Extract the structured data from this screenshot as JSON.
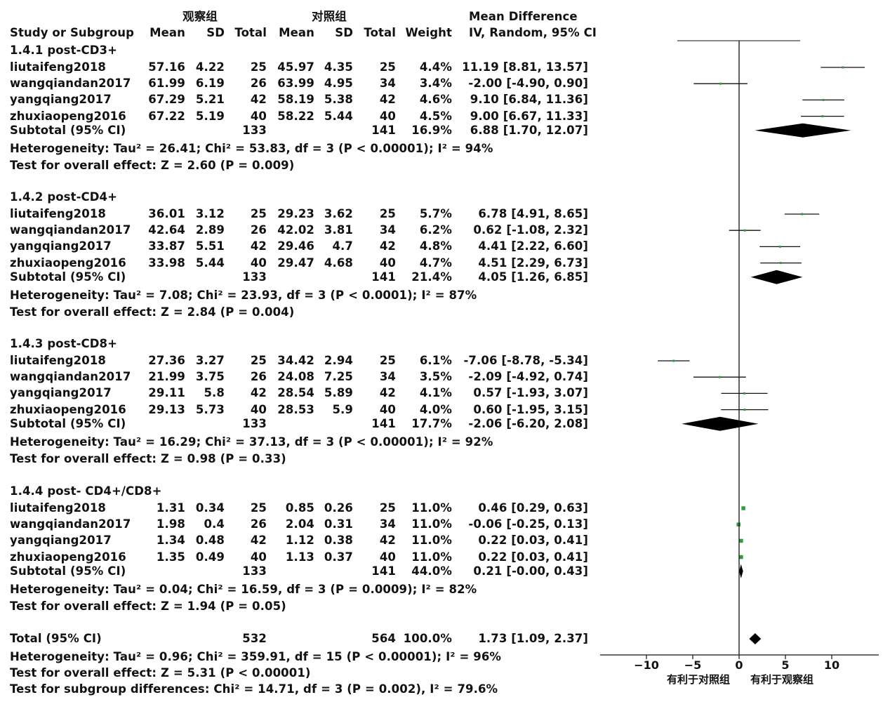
{
  "header": {
    "group1": "观察组",
    "group2": "对照组",
    "effect_title": "Mean Difference",
    "study_col": "Study or Subgroup",
    "mean1": "Mean",
    "sd1": "SD",
    "total1": "Total",
    "mean2": "Mean",
    "sd2": "SD",
    "total2": "Total",
    "weight": "Weight",
    "effect_method": "IV, Random, 95% CI"
  },
  "chart_data": {
    "type": "forest",
    "xlim": [
      -15,
      15
    ],
    "xticks": [
      -10,
      -5,
      0,
      5,
      10
    ],
    "xtick_labels": [
      "−10",
      "−5",
      "0",
      "5",
      "10"
    ],
    "xlabel_left": "有利于对照组",
    "xlabel_right": "有利于观察组",
    "subgroups": [
      {
        "title": "1.4.1 post-CD3+",
        "studies": [
          {
            "name": "liutaifeng2018",
            "mean1": "57.16",
            "sd1": "4.22",
            "n1": "25",
            "mean2": "45.97",
            "sd2": "4.35",
            "n2": "25",
            "weight": "4.4%",
            "ci_text": "11.19 [8.81, 13.57]",
            "md": 11.19,
            "lo": 8.81,
            "hi": 13.57
          },
          {
            "name": "wangqiandan2017",
            "mean1": "61.99",
            "sd1": "6.19",
            "n1": "26",
            "mean2": "63.99",
            "sd2": "4.95",
            "n2": "34",
            "weight": "3.4%",
            "ci_text": "-2.00 [-4.90, 0.90]",
            "md": -2.0,
            "lo": -4.9,
            "hi": 0.9
          },
          {
            "name": "yangqiang2017",
            "mean1": "67.29",
            "sd1": "5.21",
            "n1": "42",
            "mean2": "58.19",
            "sd2": "5.38",
            "n2": "42",
            "weight": "4.6%",
            "ci_text": "9.10 [6.84, 11.36]",
            "md": 9.1,
            "lo": 6.84,
            "hi": 11.36
          },
          {
            "name": "zhuxiaopeng2016",
            "mean1": "67.22",
            "sd1": "5.19",
            "n1": "40",
            "mean2": "58.22",
            "sd2": "5.44",
            "n2": "40",
            "weight": "4.5%",
            "ci_text": "9.00 [6.67, 11.33]",
            "md": 9.0,
            "lo": 6.67,
            "hi": 11.33
          }
        ],
        "subtotal": {
          "label": "Subtotal (95% CI)",
          "n1": "133",
          "n2": "141",
          "weight": "16.9%",
          "ci_text": "6.88 [1.70, 12.07]",
          "md": 6.88,
          "lo": 1.7,
          "hi": 12.07
        },
        "heterogeneity": "Heterogeneity: Tau² = 26.41; Chi² = 53.83, df = 3 (P < 0.00001); I² = 94%",
        "overall": "Test for overall effect: Z = 2.60 (P = 0.009)"
      },
      {
        "title": "1.4.2 post-CD4+",
        "studies": [
          {
            "name": "liutaifeng2018",
            "mean1": "36.01",
            "sd1": "3.12",
            "n1": "25",
            "mean2": "29.23",
            "sd2": "3.62",
            "n2": "25",
            "weight": "5.7%",
            "ci_text": "6.78 [4.91, 8.65]",
            "md": 6.78,
            "lo": 4.91,
            "hi": 8.65
          },
          {
            "name": "wangqiandan2017",
            "mean1": "42.64",
            "sd1": "2.89",
            "n1": "26",
            "mean2": "42.02",
            "sd2": "3.81",
            "n2": "34",
            "weight": "6.2%",
            "ci_text": "0.62 [-1.08, 2.32]",
            "md": 0.62,
            "lo": -1.08,
            "hi": 2.32
          },
          {
            "name": "yangqiang2017",
            "mean1": "33.87",
            "sd1": "5.51",
            "n1": "42",
            "mean2": "29.46",
            "sd2": "4.7",
            "n2": "42",
            "weight": "4.8%",
            "ci_text": "4.41 [2.22, 6.60]",
            "md": 4.41,
            "lo": 2.22,
            "hi": 6.6
          },
          {
            "name": "zhuxiaopeng2016",
            "mean1": "33.98",
            "sd1": "5.44",
            "n1": "40",
            "mean2": "29.47",
            "sd2": "4.68",
            "n2": "40",
            "weight": "4.7%",
            "ci_text": "4.51 [2.29, 6.73]",
            "md": 4.51,
            "lo": 2.29,
            "hi": 6.73
          }
        ],
        "subtotal": {
          "label": "Subtotal (95% CI)",
          "n1": "133",
          "n2": "141",
          "weight": "21.4%",
          "ci_text": "4.05 [1.26, 6.85]",
          "md": 4.05,
          "lo": 1.26,
          "hi": 6.85
        },
        "heterogeneity": "Heterogeneity: Tau² = 7.08; Chi² = 23.93, df = 3 (P < 0.0001); I² = 87%",
        "overall": "Test for overall effect: Z = 2.84 (P = 0.004)"
      },
      {
        "title": "1.4.3 post-CD8+",
        "studies": [
          {
            "name": "liutaifeng2018",
            "mean1": "27.36",
            "sd1": "3.27",
            "n1": "25",
            "mean2": "34.42",
            "sd2": "2.94",
            "n2": "25",
            "weight": "6.1%",
            "ci_text": "-7.06 [-8.78, -5.34]",
            "md": -7.06,
            "lo": -8.78,
            "hi": -5.34
          },
          {
            "name": "wangqiandan2017",
            "mean1": "21.99",
            "sd1": "3.75",
            "n1": "26",
            "mean2": "24.08",
            "sd2": "7.25",
            "n2": "34",
            "weight": "3.5%",
            "ci_text": "-2.09 [-4.92, 0.74]",
            "md": -2.09,
            "lo": -4.92,
            "hi": 0.74
          },
          {
            "name": "yangqiang2017",
            "mean1": "29.11",
            "sd1": "5.8",
            "n1": "42",
            "mean2": "28.54",
            "sd2": "5.89",
            "n2": "42",
            "weight": "4.1%",
            "ci_text": "0.57 [-1.93, 3.07]",
            "md": 0.57,
            "lo": -1.93,
            "hi": 3.07
          },
          {
            "name": "zhuxiaopeng2016",
            "mean1": "29.13",
            "sd1": "5.73",
            "n1": "40",
            "mean2": "28.53",
            "sd2": "5.9",
            "n2": "40",
            "weight": "4.0%",
            "ci_text": "0.60 [-1.95, 3.15]",
            "md": 0.6,
            "lo": -1.95,
            "hi": 3.15
          }
        ],
        "subtotal": {
          "label": "Subtotal (95% CI)",
          "n1": "133",
          "n2": "141",
          "weight": "17.7%",
          "ci_text": "-2.06 [-6.20, 2.08]",
          "md": -2.06,
          "lo": -6.2,
          "hi": 2.08
        },
        "heterogeneity": "Heterogeneity: Tau² = 16.29; Chi² = 37.13, df = 3 (P < 0.00001); I² = 92%",
        "overall": "Test for overall effect: Z = 0.98 (P = 0.33)"
      },
      {
        "title": "1.4.4 post- CD4+/CD8+",
        "studies": [
          {
            "name": "liutaifeng2018",
            "mean1": "1.31",
            "sd1": "0.34",
            "n1": "25",
            "mean2": "0.85",
            "sd2": "0.26",
            "n2": "25",
            "weight": "11.0%",
            "ci_text": "0.46 [0.29, 0.63]",
            "md": 0.46,
            "lo": 0.29,
            "hi": 0.63
          },
          {
            "name": "wangqiandan2017",
            "mean1": "1.98",
            "sd1": "0.4",
            "n1": "26",
            "mean2": "2.04",
            "sd2": "0.31",
            "n2": "34",
            "weight": "11.0%",
            "ci_text": "-0.06 [-0.25, 0.13]",
            "md": -0.06,
            "lo": -0.25,
            "hi": 0.13
          },
          {
            "name": "yangqiang2017",
            "mean1": "1.34",
            "sd1": "0.48",
            "n1": "42",
            "mean2": "1.12",
            "sd2": "0.38",
            "n2": "42",
            "weight": "11.0%",
            "ci_text": "0.22 [0.03, 0.41]",
            "md": 0.22,
            "lo": 0.03,
            "hi": 0.41
          },
          {
            "name": "zhuxiaopeng2016",
            "mean1": "1.35",
            "sd1": "0.49",
            "n1": "40",
            "mean2": "1.13",
            "sd2": "0.37",
            "n2": "40",
            "weight": "11.0%",
            "ci_text": "0.22 [0.03, 0.41]",
            "md": 0.22,
            "lo": 0.03,
            "hi": 0.41
          }
        ],
        "subtotal": {
          "label": "Subtotal (95% CI)",
          "n1": "133",
          "n2": "141",
          "weight": "44.0%",
          "ci_text": "0.21 [-0.00, 0.43]",
          "md": 0.21,
          "lo": -0.0,
          "hi": 0.43
        },
        "heterogeneity": "Heterogeneity: Tau² = 0.04; Chi² = 16.59, df = 3 (P = 0.0009); I² = 82%",
        "overall": "Test for overall effect: Z = 1.94 (P = 0.05)"
      }
    ],
    "total": {
      "label": "Total (95% CI)",
      "n1": "532",
      "n2": "564",
      "weight": "100.0%",
      "ci_text": "1.73 [1.09, 2.37]",
      "md": 1.73,
      "lo": 1.09,
      "hi": 2.37
    },
    "total_heterogeneity": "Heterogeneity: Tau² = 0.96; Chi² = 359.91, df = 15 (P < 0.00001); I² = 96%",
    "total_overall": "Test for overall effect: Z = 5.31 (P < 0.00001)",
    "subgroup_diff": "Test for subgroup differences: Chi² = 14.71, df = 3 (P = 0.002), I² = 79.6%",
    "colors": {
      "point": "#2e9e3a",
      "line": "#111111",
      "diamond": "#000000"
    }
  }
}
